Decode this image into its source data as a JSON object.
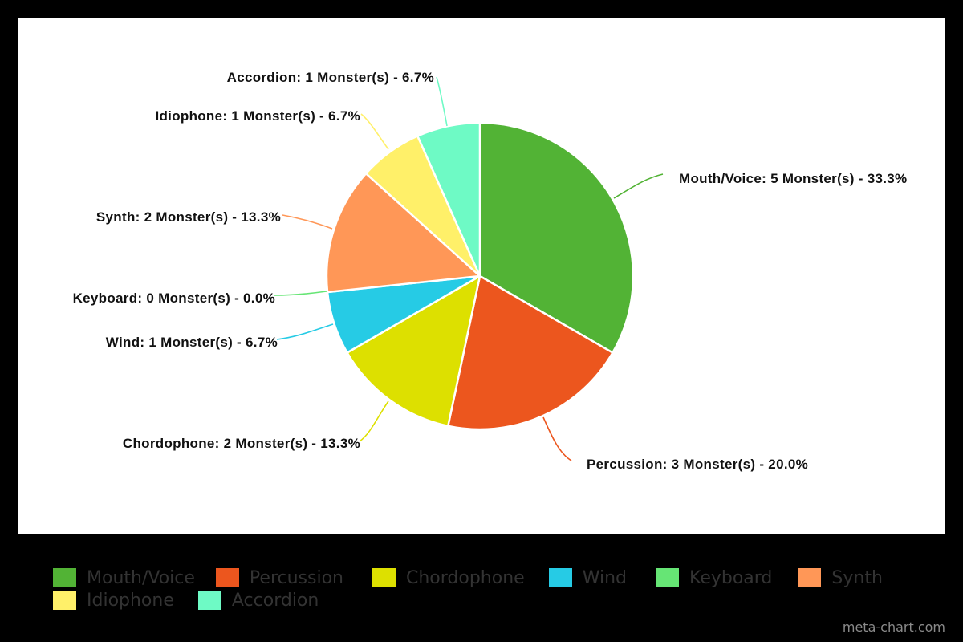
{
  "chart_data": {
    "type": "pie",
    "title": "",
    "unit": "Monster(s)",
    "categories": [
      "Mouth/Voice",
      "Percussion",
      "Chordophone",
      "Wind",
      "Keyboard",
      "Synth",
      "Idiophone",
      "Accordion"
    ],
    "values": [
      5,
      3,
      2,
      1,
      0,
      2,
      1,
      1
    ],
    "percentages": [
      33.3,
      20.0,
      13.3,
      6.7,
      0.0,
      13.3,
      6.7,
      6.7
    ],
    "colors": [
      "#52b335",
      "#ec561e",
      "#dde000",
      "#26cbe5",
      "#66e575",
      "#ff9757",
      "#fff069",
      "#6efac5"
    ],
    "legend_position": "bottom",
    "start_angle": "12 o'clock, clockwise"
  },
  "labels": {
    "mouth_voice": "Mouth/Voice: 5 Monster(s) - 33.3%",
    "percussion": "Percussion: 3 Monster(s) - 20.0%",
    "chordophone": "Chordophone: 2 Monster(s) - 13.3%",
    "wind": "Wind: 1 Monster(s) - 6.7%",
    "keyboard": "Keyboard: 0 Monster(s) - 0.0%",
    "synth": "Synth: 2 Monster(s) - 13.3%",
    "idiophone": "Idiophone: 1 Monster(s) - 6.7%",
    "accordion": "Accordion: 1 Monster(s) - 6.7%"
  },
  "legend": {
    "items": [
      {
        "label": "Mouth/Voice",
        "color": "#52b335"
      },
      {
        "label": "Percussion",
        "color": "#ec561e"
      },
      {
        "label": "Chordophone",
        "color": "#dde000"
      },
      {
        "label": "Wind",
        "color": "#26cbe5"
      },
      {
        "label": "Keyboard",
        "color": "#66e575"
      },
      {
        "label": "Synth",
        "color": "#ff9757"
      },
      {
        "label": "Idiophone",
        "color": "#fff069"
      },
      {
        "label": "Accordion",
        "color": "#6efac5"
      }
    ]
  },
  "credit": "meta-chart.com"
}
